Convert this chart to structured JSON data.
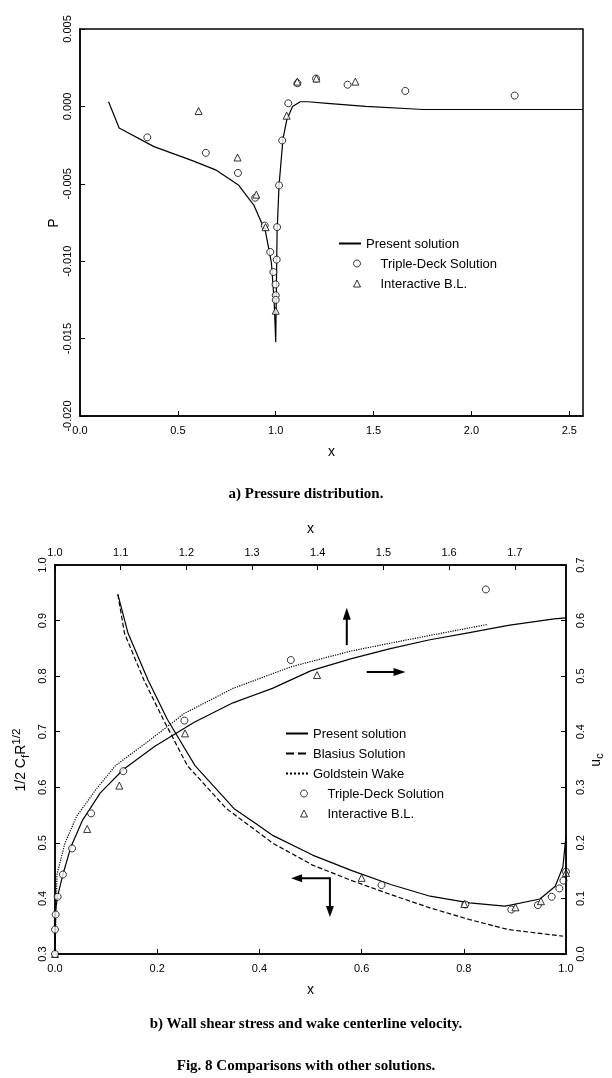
{
  "chart_data": [
    {
      "type": "line",
      "title": "a) Pressure distribution.",
      "xlabel": "x",
      "ylabel": "P",
      "legend": "right",
      "xlim": [
        0,
        2.57
      ],
      "xticks": [
        {
          "value": 0,
          "label": "0.0"
        },
        0.5,
        {
          "value": 1,
          "label": "1.0"
        },
        1.5,
        {
          "value": 2,
          "label": "2.0"
        },
        2.5
      ],
      "ylim": [
        -0.02,
        0.005
      ],
      "yticks": [
        {
          "value": -0.02,
          "label": "-0.020"
        },
        -0.015,
        {
          "value": -0.01,
          "label": "-0.010"
        },
        -0.005,
        {
          "value": 0,
          "label": "0.000"
        },
        0.005
      ],
      "series": [
        {
          "name": "Present solution",
          "color": "#000000",
          "marker": "none",
          "line_style": "solid",
          "x": [
            0.146,
            0.2,
            0.378,
            0.574,
            0.693,
            0.811,
            0.889,
            0.948,
            0.978,
            0.992,
            1.0,
            1.007,
            1.017,
            1.037,
            1.056,
            1.086,
            1.125,
            1.165,
            1.263,
            1.46,
            1.755,
            2.57
          ],
          "values": [
            0.0003,
            -0.0014,
            -0.0026,
            -0.0035,
            -0.0041,
            -0.0051,
            -0.0064,
            -0.0081,
            -0.0101,
            -0.0126,
            -0.0152,
            -0.0081,
            -0.0051,
            -0.0021,
            -0.0009,
            0.0,
            0.0003,
            0.0003,
            0.0002,
            0.0,
            -0.0002,
            -0.0002
          ]
        },
        {
          "name": "Triple-Deck Solution",
          "type": "scatter",
          "color": "#000000",
          "marker": "circle",
          "x": [
            0.344,
            0.643,
            0.807,
            0.895,
            0.944,
            0.972,
            0.988,
            0.999,
            1.0,
            1.0,
            1.005,
            1.007,
            1.017,
            1.033,
            1.064,
            1.111,
            1.206,
            1.367,
            1.662,
            2.221
          ],
          "values": [
            -0.002,
            -0.003,
            -0.0043,
            -0.0059,
            -0.0077,
            -0.0094,
            -0.0107,
            -0.0115,
            -0.0122,
            -0.0125,
            -0.0099,
            -0.0078,
            -0.0051,
            -0.0022,
            0.0002,
            0.0015,
            0.0018,
            0.0014,
            0.001,
            0.0007
          ]
        },
        {
          "name": "Interactive B.L.",
          "type": "scatter",
          "color": "#000000",
          "marker": "triangle",
          "x": [
            0.606,
            0.805,
            0.901,
            0.948,
            1.0,
            1.056,
            1.11,
            1.208,
            1.407
          ],
          "values": [
            -0.0003,
            -0.0033,
            -0.0057,
            -0.0078,
            -0.0132,
            -0.0006,
            0.0016,
            0.0018,
            0.0016
          ]
        }
      ]
    },
    {
      "type": "line",
      "title": "b) Wall shear stress and wake centerline velocity.",
      "annotations": [
        "Fig. 8 Comparisons with other solutions."
      ],
      "xlabel": "x",
      "ylabel": "1/2 C$_{f}$R$^{1/2}$",
      "legend": "center",
      "xlim": [
        0,
        1
      ],
      "xticks": [
        {
          "value": 0,
          "label": "0.0"
        },
        0.2,
        0.4,
        0.6,
        0.8,
        {
          "value": 1,
          "label": "1.0"
        }
      ],
      "ylim": [
        0.3,
        1.0
      ],
      "yticks": [
        0.3,
        0.4,
        0.5,
        0.6,
        0.7,
        0.8,
        0.9,
        {
          "value": 1,
          "label": "1.0"
        }
      ],
      "series": [
        {
          "name": "Present solution",
          "color": "#000000",
          "marker": "none",
          "line_style": "solid",
          "x": [
            0.123,
            0.143,
            0.182,
            0.22,
            0.274,
            0.35,
            0.427,
            0.504,
            0.581,
            0.657,
            0.734,
            0.811,
            0.88,
            0.949,
            0.979,
            0.994,
            1.0
          ],
          "values": [
            0.947,
            0.877,
            0.793,
            0.722,
            0.639,
            0.562,
            0.513,
            0.478,
            0.45,
            0.425,
            0.404,
            0.392,
            0.386,
            0.399,
            0.422,
            0.457,
            0.513
          ]
        },
        {
          "name": "Blasius Solution",
          "color": "#000000",
          "marker": "none",
          "line_style": "dashed",
          "x": [
            0.123,
            0.136,
            0.174,
            0.212,
            0.259,
            0.335,
            0.427,
            0.504,
            0.581,
            0.657,
            0.734,
            0.811,
            0.887,
            0.994
          ],
          "values": [
            0.947,
            0.877,
            0.793,
            0.722,
            0.639,
            0.562,
            0.499,
            0.46,
            0.432,
            0.407,
            0.383,
            0.362,
            0.344,
            0.332
          ]
        },
        {
          "name": "Triple-Deck Solution",
          "type": "scatter",
          "color": "#000000",
          "marker": "circle",
          "x": [
            0.639,
            0.803,
            0.893,
            0.945,
            0.972,
            0.987,
            0.995,
            1.0
          ],
          "values": [
            0.424,
            0.389,
            0.38,
            0.388,
            0.403,
            0.418,
            0.432,
            0.448
          ]
        },
        {
          "name": "Interactive B.L.",
          "type": "scatter",
          "color": "#000000",
          "marker": "triangle",
          "x": [
            0.6,
            0.801,
            0.901,
            0.951,
            1.0
          ],
          "values": [
            0.437,
            0.39,
            0.384,
            0.395,
            0.446
          ]
        }
      ]
    },
    {
      "type": "line",
      "xlabel": "x",
      "ylabel": "u$_{c}$",
      "legend": "center",
      "xlim": [
        1,
        1.778
      ],
      "xticks": [
        {
          "value": 1,
          "label": "1.0"
        },
        1.1,
        1.2,
        1.3,
        1.4,
        1.5,
        1.6,
        1.7
      ],
      "ylim": [
        0,
        0.7
      ],
      "yticks": [
        {
          "value": 0,
          "label": "0.0"
        },
        0.1,
        0.2,
        0.3,
        0.4,
        0.5,
        0.6,
        0.7
      ],
      "series": [
        {
          "name": "Goldstein Wake",
          "color": "#000000",
          "marker": "none",
          "line_style": "dotted",
          "x": [
            1.0,
            1.003,
            1.015,
            1.033,
            1.063,
            1.092,
            1.14,
            1.197,
            1.271,
            1.36,
            1.45,
            1.539,
            1.658
          ],
          "values": [
            0.0,
            0.143,
            0.199,
            0.248,
            0.297,
            0.339,
            0.381,
            0.433,
            0.478,
            0.517,
            0.545,
            0.566,
            0.593
          ]
        },
        {
          "color": "#000000",
          "marker": "none",
          "line_style": "solid",
          "x": [
            1.0,
            1.0,
            1.004,
            1.012,
            1.024,
            1.042,
            1.069,
            1.104,
            1.152,
            1.212,
            1.271,
            1.331,
            1.39,
            1.45,
            1.509,
            1.569,
            1.629,
            1.688,
            1.76,
            1.778
          ],
          "values": [
            0.0,
            0.072,
            0.104,
            0.143,
            0.192,
            0.241,
            0.29,
            0.332,
            0.374,
            0.417,
            0.452,
            0.478,
            0.51,
            0.531,
            0.549,
            0.565,
            0.578,
            0.591,
            0.603,
            0.605
          ]
        },
        {
          "type": "scatter",
          "color": "#000000",
          "marker": "triangle",
          "x": [
            1.0,
            1.049,
            1.098,
            1.198,
            1.399
          ],
          "values": [
            0.0,
            0.225,
            0.303,
            0.397,
            0.502
          ]
        },
        {
          "type": "scatter",
          "color": "#000000",
          "marker": "circle",
          "x": [
            1.0,
            1.0,
            1.001,
            1.004,
            1.012,
            1.026,
            1.055,
            1.104,
            1.197,
            1.359,
            1.656
          ],
          "values": [
            0.0,
            0.044,
            0.071,
            0.103,
            0.143,
            0.19,
            0.253,
            0.329,
            0.42,
            0.529,
            0.656
          ]
        }
      ]
    }
  ]
}
